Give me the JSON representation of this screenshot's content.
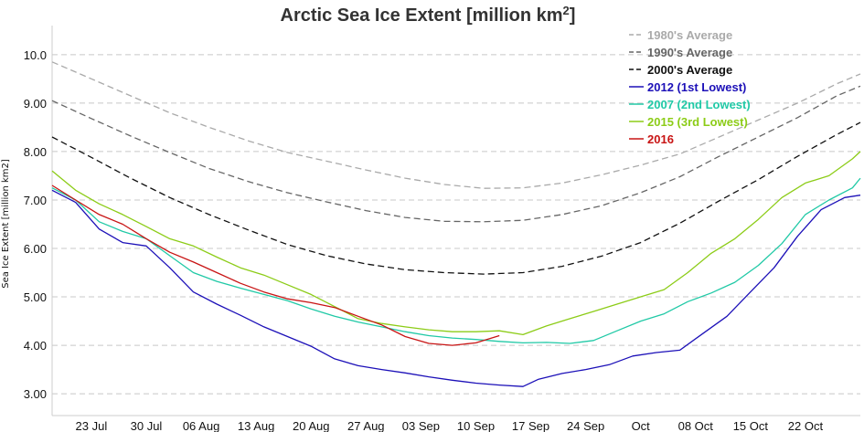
{
  "chart_data": {
    "type": "line",
    "title": "Arctic Sea Ice Extent [million km",
    "title_sup": "2",
    "title_close": "]",
    "ylabel": "Sea Ice Extent [million km2]",
    "ylim": [
      2.55,
      10.6
    ],
    "yticks": [
      "3.00",
      "4.00",
      "5.00",
      "6.00",
      "7.00",
      "8.00",
      "9.00",
      "10.0"
    ],
    "ytick_values": [
      3,
      4,
      5,
      6,
      7,
      8,
      9,
      10
    ],
    "x_start": "2016-07-18",
    "xlim_days": [
      0,
      103
    ],
    "xticks": [
      "23 Jul",
      "30 Jul",
      "06 Aug",
      "13 Aug",
      "20 Aug",
      "27 Aug",
      "03 Sep",
      "10 Sep",
      "17 Sep",
      "24 Sep",
      "Oct",
      "08 Oct",
      "15 Oct",
      "22 Oct"
    ],
    "xtick_days": [
      5,
      12,
      19,
      26,
      33,
      40,
      47,
      54,
      61,
      68,
      75,
      82,
      89,
      96
    ],
    "grid": "horizontal dashed",
    "legend_position": "top-right",
    "series": [
      {
        "name": "1980's Average",
        "color": "#aaaaaa",
        "dashed": true,
        "x": [
          0,
          5,
          10,
          15,
          20,
          25,
          30,
          35,
          40,
          45,
          50,
          55,
          60,
          65,
          70,
          75,
          80,
          85,
          90,
          95,
          100,
          103
        ],
        "y": [
          9.85,
          9.5,
          9.15,
          8.8,
          8.5,
          8.22,
          7.98,
          7.8,
          7.62,
          7.45,
          7.32,
          7.24,
          7.25,
          7.35,
          7.52,
          7.72,
          7.95,
          8.3,
          8.65,
          9.0,
          9.4,
          9.6
        ]
      },
      {
        "name": "1990's Average",
        "color": "#666666",
        "dashed": true,
        "x": [
          0,
          5,
          10,
          15,
          20,
          25,
          30,
          35,
          40,
          45,
          50,
          55,
          60,
          65,
          70,
          75,
          80,
          85,
          90,
          95,
          100,
          103
        ],
        "y": [
          9.05,
          8.68,
          8.32,
          7.98,
          7.65,
          7.38,
          7.15,
          6.96,
          6.78,
          6.64,
          6.56,
          6.55,
          6.58,
          6.7,
          6.88,
          7.15,
          7.48,
          7.9,
          8.3,
          8.7,
          9.15,
          9.35
        ]
      },
      {
        "name": "2000's Average",
        "color": "#111111",
        "dashed": true,
        "x": [
          0,
          5,
          10,
          15,
          20,
          25,
          30,
          35,
          40,
          45,
          50,
          55,
          60,
          65,
          70,
          75,
          80,
          85,
          90,
          95,
          100,
          103
        ],
        "y": [
          8.3,
          7.88,
          7.45,
          7.05,
          6.7,
          6.38,
          6.08,
          5.85,
          5.68,
          5.56,
          5.5,
          5.47,
          5.5,
          5.63,
          5.84,
          6.12,
          6.52,
          6.98,
          7.42,
          7.9,
          8.35,
          8.6
        ]
      },
      {
        "name": "2012 (1st Lowest)",
        "color": "#1c10b8",
        "dashed": false,
        "x": [
          0,
          3,
          6,
          9,
          12,
          15,
          18,
          21,
          24,
          27,
          30,
          33,
          36,
          39,
          42,
          45,
          48,
          51,
          54,
          57,
          60,
          62,
          65,
          68,
          71,
          74,
          77,
          80,
          83,
          86,
          89,
          92,
          95,
          98,
          101,
          103
        ],
        "y": [
          7.2,
          6.95,
          6.4,
          6.12,
          6.05,
          5.6,
          5.1,
          4.85,
          4.62,
          4.38,
          4.18,
          3.98,
          3.72,
          3.58,
          3.5,
          3.43,
          3.35,
          3.28,
          3.22,
          3.18,
          3.15,
          3.3,
          3.42,
          3.5,
          3.6,
          3.78,
          3.85,
          3.9,
          4.25,
          4.6,
          5.1,
          5.6,
          6.25,
          6.8,
          7.05,
          7.1
        ]
      },
      {
        "name": "2007 (2nd Lowest)",
        "color": "#20c9a6",
        "dashed": false,
        "x": [
          0,
          3,
          6,
          9,
          12,
          15,
          18,
          21,
          24,
          27,
          30,
          33,
          36,
          39,
          42,
          45,
          48,
          51,
          54,
          57,
          60,
          63,
          66,
          69,
          72,
          75,
          78,
          81,
          84,
          87,
          90,
          93,
          96,
          99,
          102,
          103
        ],
        "y": [
          7.25,
          7.0,
          6.55,
          6.35,
          6.2,
          5.85,
          5.5,
          5.32,
          5.18,
          5.05,
          4.92,
          4.75,
          4.6,
          4.48,
          4.38,
          4.28,
          4.2,
          4.15,
          4.12,
          4.08,
          4.05,
          4.06,
          4.04,
          4.1,
          4.3,
          4.5,
          4.65,
          4.9,
          5.08,
          5.3,
          5.65,
          6.1,
          6.7,
          7.0,
          7.25,
          7.45
        ]
      },
      {
        "name": "2015 (3rd Lowest)",
        "color": "#8ccc17",
        "dashed": false,
        "x": [
          0,
          3,
          6,
          9,
          12,
          15,
          18,
          21,
          24,
          27,
          30,
          33,
          36,
          39,
          42,
          45,
          48,
          51,
          54,
          57,
          60,
          63,
          66,
          69,
          72,
          75,
          78,
          81,
          84,
          87,
          90,
          93,
          96,
          99,
          102,
          103
        ],
        "y": [
          7.6,
          7.2,
          6.92,
          6.7,
          6.45,
          6.2,
          6.05,
          5.82,
          5.6,
          5.45,
          5.25,
          5.05,
          4.8,
          4.55,
          4.45,
          4.38,
          4.32,
          4.28,
          4.28,
          4.3,
          4.22,
          4.4,
          4.55,
          4.7,
          4.85,
          5.0,
          5.15,
          5.5,
          5.9,
          6.2,
          6.6,
          7.05,
          7.35,
          7.5,
          7.85,
          8.0
        ]
      },
      {
        "name": "2016",
        "color": "#c81414",
        "dashed": false,
        "x": [
          0,
          3,
          6,
          9,
          12,
          15,
          18,
          21,
          24,
          27,
          30,
          33,
          36,
          39,
          42,
          45,
          48,
          51,
          54,
          57
        ],
        "y": [
          7.3,
          7.0,
          6.7,
          6.5,
          6.2,
          5.92,
          5.72,
          5.5,
          5.28,
          5.1,
          4.96,
          4.88,
          4.78,
          4.6,
          4.42,
          4.18,
          4.04,
          4.0,
          4.05,
          4.2
        ]
      }
    ]
  }
}
